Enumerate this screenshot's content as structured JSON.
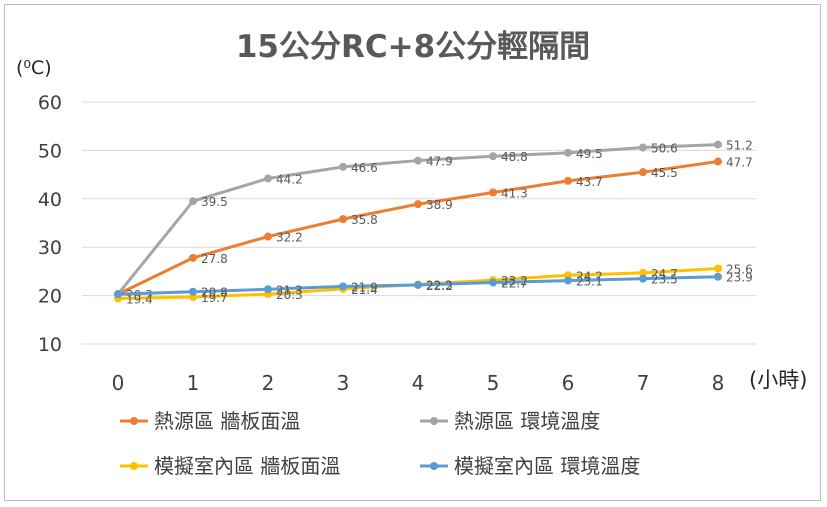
{
  "chart_data": {
    "type": "line",
    "title": "15公分RC+8公分輕隔間",
    "ylabel": "(⁰C)",
    "xlabel": "(小時)",
    "ylim": [
      10,
      60
    ],
    "yticks": [
      10,
      20,
      30,
      40,
      50,
      60
    ],
    "x": [
      0,
      1,
      2,
      3,
      4,
      5,
      6,
      7,
      8
    ],
    "grid": true,
    "legend_position": "bottom",
    "series": [
      {
        "name": "熱源區 牆板面溫",
        "color": "#ED7D31",
        "values": [
          20.3,
          27.8,
          32.2,
          35.8,
          38.9,
          41.3,
          43.7,
          45.5,
          47.7
        ],
        "labels": [
          "",
          "27.8",
          "32.2",
          "35.8",
          "38.9",
          "41.3",
          "43.7",
          "45.5",
          "47.7"
        ]
      },
      {
        "name": "熱源區 環境溫度",
        "color": "#A5A5A5",
        "values": [
          20.3,
          39.5,
          44.2,
          46.6,
          47.9,
          48.8,
          49.5,
          50.6,
          51.2
        ],
        "labels": [
          "20.3",
          "39.5",
          "44.2",
          "46.6",
          "47.9",
          "48.8",
          "49.5",
          "50.6",
          "51.2"
        ]
      },
      {
        "name": "模擬室內區 牆板面溫",
        "color": "#FFC000",
        "values": [
          19.4,
          19.7,
          20.3,
          21.4,
          22.3,
          23.2,
          24.2,
          24.7,
          25.6
        ],
        "labels": [
          "19.4",
          "19.7",
          "20.3",
          "21.4",
          "22.3",
          "23.2",
          "24.2",
          "24.7",
          "25.6"
        ]
      },
      {
        "name": "模擬室內區 環境溫度",
        "color": "#5B9BD5",
        "values": [
          20.3,
          20.8,
          21.3,
          21.9,
          22.2,
          22.7,
          23.1,
          23.5,
          23.9
        ],
        "labels": [
          "",
          "20.8",
          "21.3",
          "21.9",
          "22.2",
          "22.7",
          "23.1",
          "23.5",
          "23.9"
        ]
      }
    ]
  }
}
